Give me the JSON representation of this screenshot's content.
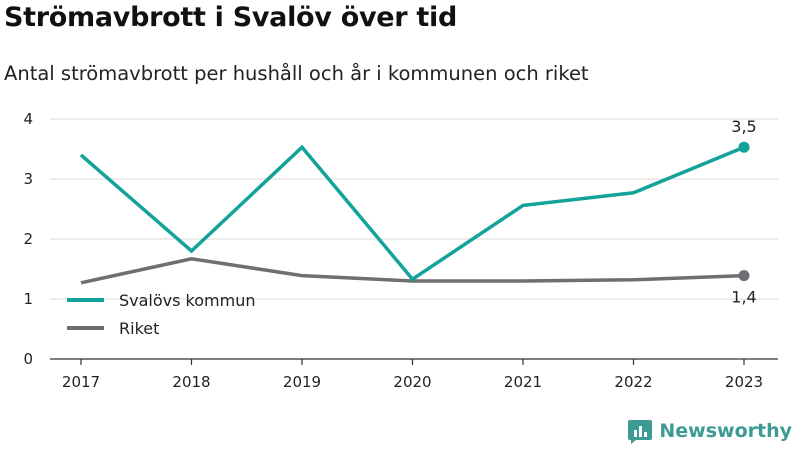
{
  "title": "Strömavbrott i Svalöv över tid",
  "subtitle": "Antal strömavbrott per hushåll och år i kommunen och riket",
  "brand": "Newsworthy",
  "colors": {
    "svalov": "#13a39a",
    "riket": "#6e6e73",
    "grid": "#d9d9d9",
    "brand": "#3d9b93"
  },
  "chart_data": {
    "type": "line",
    "x": [
      "2017",
      "2018",
      "2019",
      "2020",
      "2021",
      "2022",
      "2023"
    ],
    "ylim": [
      0,
      4
    ],
    "yticks": [
      0,
      1,
      2,
      3,
      4
    ],
    "grid": true,
    "legend_position": "bottom-left",
    "series": [
      {
        "name": "Svalövs kommun",
        "values": [
          3.4,
          1.8,
          3.53,
          1.33,
          2.56,
          2.77,
          3.53
        ],
        "end_label": "3,5"
      },
      {
        "name": "Riket",
        "values": [
          1.27,
          1.67,
          1.39,
          1.3,
          1.3,
          1.32,
          1.39
        ],
        "end_label": "1,4"
      }
    ]
  }
}
